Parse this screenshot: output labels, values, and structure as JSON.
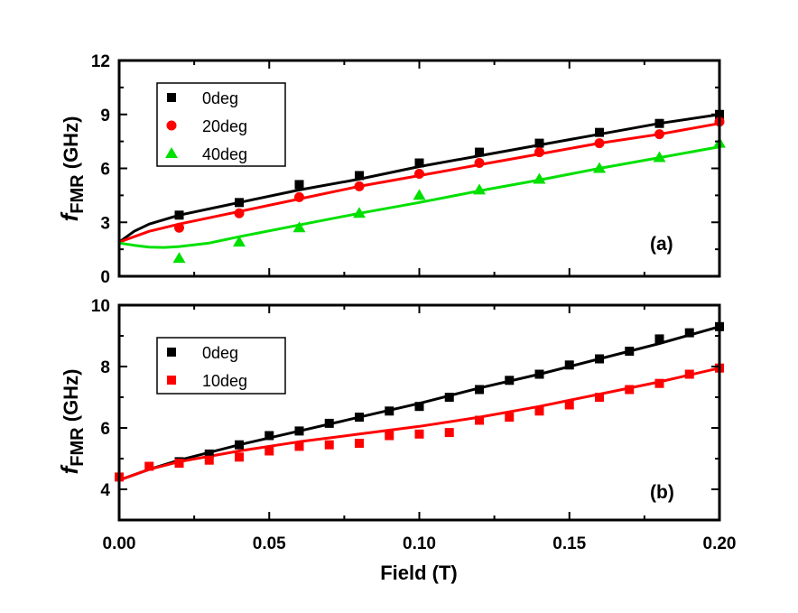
{
  "figure": {
    "xlabel": "Field (T)",
    "x_ticks": [
      "0.00",
      "0.05",
      "0.10",
      "0.15",
      "0.20"
    ],
    "colors": {
      "black": "#000000",
      "red": "#ff0000",
      "green": "#00e000"
    }
  },
  "chart_data": [
    {
      "type": "scatter",
      "panel_label": "(a)",
      "ylabel_main": "f",
      "ylabel_sub": "FMR",
      "ylabel_tail": " (GHz)",
      "xlim": [
        0.0,
        0.2
      ],
      "ylim": [
        0,
        12
      ],
      "y_ticks": [
        "0",
        "3",
        "6",
        "9",
        "12"
      ],
      "legend_position": "top-left",
      "series": [
        {
          "name": "0deg",
          "marker": "square",
          "color": "#000000",
          "x": [
            0.02,
            0.04,
            0.06,
            0.08,
            0.1,
            0.12,
            0.14,
            0.16,
            0.18,
            0.2
          ],
          "y": [
            3.4,
            4.1,
            5.1,
            5.6,
            6.3,
            6.9,
            7.4,
            8.0,
            8.5,
            9.0
          ],
          "fit": {
            "x": [
              0.0,
              0.005,
              0.01,
              0.02,
              0.04,
              0.06,
              0.08,
              0.1,
              0.12,
              0.14,
              0.16,
              0.18,
              0.2
            ],
            "y": [
              1.9,
              2.5,
              2.9,
              3.4,
              4.1,
              4.8,
              5.4,
              6.1,
              6.7,
              7.3,
              7.9,
              8.5,
              9.0
            ]
          }
        },
        {
          "name": "20deg",
          "marker": "circle",
          "color": "#ff0000",
          "x": [
            0.02,
            0.04,
            0.06,
            0.08,
            0.1,
            0.12,
            0.14,
            0.16,
            0.18,
            0.2
          ],
          "y": [
            2.7,
            3.5,
            4.4,
            5.0,
            5.7,
            6.3,
            6.9,
            7.4,
            7.9,
            8.6
          ],
          "fit": {
            "x": [
              0.0,
              0.005,
              0.01,
              0.02,
              0.04,
              0.06,
              0.08,
              0.1,
              0.12,
              0.14,
              0.16,
              0.18,
              0.2
            ],
            "y": [
              1.9,
              2.2,
              2.5,
              2.9,
              3.6,
              4.3,
              5.0,
              5.6,
              6.2,
              6.8,
              7.4,
              7.9,
              8.5
            ]
          }
        },
        {
          "name": "40deg",
          "marker": "triangle",
          "color": "#00e000",
          "x": [
            0.02,
            0.04,
            0.06,
            0.08,
            0.1,
            0.12,
            0.14,
            0.16,
            0.18,
            0.2
          ],
          "y": [
            1.0,
            1.9,
            2.7,
            3.5,
            4.5,
            4.8,
            5.4,
            6.0,
            6.6,
            7.4
          ],
          "fit": {
            "x": [
              0.0,
              0.005,
              0.01,
              0.015,
              0.02,
              0.03,
              0.04,
              0.06,
              0.08,
              0.1,
              0.12,
              0.14,
              0.16,
              0.18,
              0.2
            ],
            "y": [
              1.85,
              1.72,
              1.62,
              1.6,
              1.65,
              1.85,
              2.2,
              2.85,
              3.5,
              4.1,
              4.75,
              5.35,
              6.0,
              6.6,
              7.2
            ]
          }
        }
      ]
    },
    {
      "type": "scatter",
      "panel_label": "(b)",
      "ylabel_main": "f",
      "ylabel_sub": "FMR",
      "ylabel_tail": " (GHz)",
      "xlim": [
        0.0,
        0.2
      ],
      "ylim": [
        3,
        10
      ],
      "y_ticks": [
        "4",
        "6",
        "8",
        "10"
      ],
      "legend_position": "top-left",
      "series": [
        {
          "name": "0deg",
          "marker": "square",
          "color": "#000000",
          "x": [
            0.02,
            0.03,
            0.04,
            0.05,
            0.06,
            0.07,
            0.08,
            0.09,
            0.1,
            0.11,
            0.12,
            0.13,
            0.14,
            0.15,
            0.16,
            0.17,
            0.18,
            0.19,
            0.2
          ],
          "y": [
            4.9,
            5.15,
            5.45,
            5.75,
            5.9,
            6.15,
            6.35,
            6.55,
            6.7,
            7.0,
            7.25,
            7.55,
            7.75,
            8.05,
            8.25,
            8.5,
            8.9,
            9.1,
            9.3
          ],
          "fit": {
            "x": [
              0.0,
              0.01,
              0.02,
              0.04,
              0.06,
              0.08,
              0.1,
              0.12,
              0.14,
              0.16,
              0.18,
              0.2
            ],
            "y": [
              4.3,
              4.65,
              4.95,
              5.45,
              5.9,
              6.35,
              6.8,
              7.3,
              7.75,
              8.25,
              8.75,
              9.3
            ]
          }
        },
        {
          "name": "10deg",
          "marker": "square",
          "color": "#ff0000",
          "x": [
            0.0,
            0.01,
            0.02,
            0.03,
            0.04,
            0.05,
            0.06,
            0.07,
            0.08,
            0.09,
            0.1,
            0.11,
            0.12,
            0.13,
            0.14,
            0.15,
            0.16,
            0.17,
            0.18,
            0.19,
            0.2
          ],
          "y": [
            4.4,
            4.75,
            4.85,
            4.95,
            5.05,
            5.25,
            5.4,
            5.45,
            5.5,
            5.75,
            5.8,
            5.85,
            6.25,
            6.35,
            6.55,
            6.75,
            7.0,
            7.25,
            7.45,
            7.75,
            7.95
          ],
          "fit": {
            "x": [
              0.0,
              0.01,
              0.02,
              0.04,
              0.06,
              0.08,
              0.1,
              0.12,
              0.14,
              0.16,
              0.18,
              0.2
            ],
            "y": [
              4.3,
              4.65,
              4.9,
              5.25,
              5.55,
              5.8,
              6.05,
              6.35,
              6.7,
              7.1,
              7.5,
              7.95
            ]
          }
        }
      ]
    }
  ]
}
